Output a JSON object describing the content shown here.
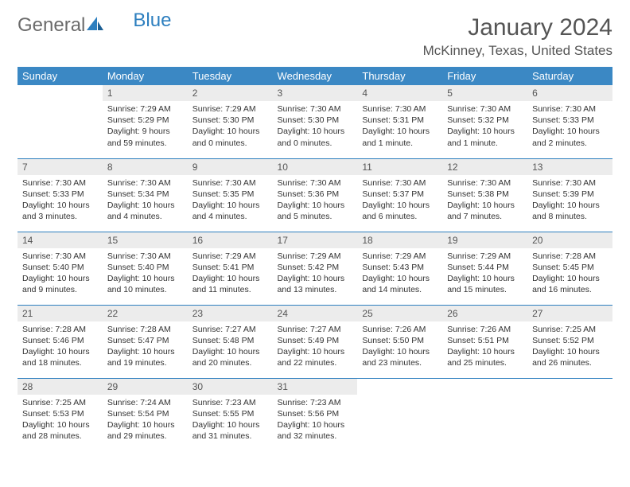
{
  "brand": {
    "part1": "General",
    "part2": "Blue"
  },
  "title": {
    "month": "January 2024",
    "location": "McKinney, Texas, United States"
  },
  "colors": {
    "header_bg": "#3b88c4",
    "header_text": "#ffffff",
    "rule": "#2d7fbf",
    "daynum_bg": "#ececec",
    "body_text": "#333333",
    "brand_grey": "#6b6b6b",
    "brand_blue": "#2d7fbf"
  },
  "weekdays": [
    "Sunday",
    "Monday",
    "Tuesday",
    "Wednesday",
    "Thursday",
    "Friday",
    "Saturday"
  ],
  "layout": {
    "columns": 7,
    "rows": 5,
    "first_weekday_index": 1,
    "days_in_month": 31
  },
  "days": [
    {
      "n": 1,
      "sunrise": "7:29 AM",
      "sunset": "5:29 PM",
      "daylight": "9 hours and 59 minutes."
    },
    {
      "n": 2,
      "sunrise": "7:29 AM",
      "sunset": "5:30 PM",
      "daylight": "10 hours and 0 minutes."
    },
    {
      "n": 3,
      "sunrise": "7:30 AM",
      "sunset": "5:30 PM",
      "daylight": "10 hours and 0 minutes."
    },
    {
      "n": 4,
      "sunrise": "7:30 AM",
      "sunset": "5:31 PM",
      "daylight": "10 hours and 1 minute."
    },
    {
      "n": 5,
      "sunrise": "7:30 AM",
      "sunset": "5:32 PM",
      "daylight": "10 hours and 1 minute."
    },
    {
      "n": 6,
      "sunrise": "7:30 AM",
      "sunset": "5:33 PM",
      "daylight": "10 hours and 2 minutes."
    },
    {
      "n": 7,
      "sunrise": "7:30 AM",
      "sunset": "5:33 PM",
      "daylight": "10 hours and 3 minutes."
    },
    {
      "n": 8,
      "sunrise": "7:30 AM",
      "sunset": "5:34 PM",
      "daylight": "10 hours and 4 minutes."
    },
    {
      "n": 9,
      "sunrise": "7:30 AM",
      "sunset": "5:35 PM",
      "daylight": "10 hours and 4 minutes."
    },
    {
      "n": 10,
      "sunrise": "7:30 AM",
      "sunset": "5:36 PM",
      "daylight": "10 hours and 5 minutes."
    },
    {
      "n": 11,
      "sunrise": "7:30 AM",
      "sunset": "5:37 PM",
      "daylight": "10 hours and 6 minutes."
    },
    {
      "n": 12,
      "sunrise": "7:30 AM",
      "sunset": "5:38 PM",
      "daylight": "10 hours and 7 minutes."
    },
    {
      "n": 13,
      "sunrise": "7:30 AM",
      "sunset": "5:39 PM",
      "daylight": "10 hours and 8 minutes."
    },
    {
      "n": 14,
      "sunrise": "7:30 AM",
      "sunset": "5:40 PM",
      "daylight": "10 hours and 9 minutes."
    },
    {
      "n": 15,
      "sunrise": "7:30 AM",
      "sunset": "5:40 PM",
      "daylight": "10 hours and 10 minutes."
    },
    {
      "n": 16,
      "sunrise": "7:29 AM",
      "sunset": "5:41 PM",
      "daylight": "10 hours and 11 minutes."
    },
    {
      "n": 17,
      "sunrise": "7:29 AM",
      "sunset": "5:42 PM",
      "daylight": "10 hours and 13 minutes."
    },
    {
      "n": 18,
      "sunrise": "7:29 AM",
      "sunset": "5:43 PM",
      "daylight": "10 hours and 14 minutes."
    },
    {
      "n": 19,
      "sunrise": "7:29 AM",
      "sunset": "5:44 PM",
      "daylight": "10 hours and 15 minutes."
    },
    {
      "n": 20,
      "sunrise": "7:28 AM",
      "sunset": "5:45 PM",
      "daylight": "10 hours and 16 minutes."
    },
    {
      "n": 21,
      "sunrise": "7:28 AM",
      "sunset": "5:46 PM",
      "daylight": "10 hours and 18 minutes."
    },
    {
      "n": 22,
      "sunrise": "7:28 AM",
      "sunset": "5:47 PM",
      "daylight": "10 hours and 19 minutes."
    },
    {
      "n": 23,
      "sunrise": "7:27 AM",
      "sunset": "5:48 PM",
      "daylight": "10 hours and 20 minutes."
    },
    {
      "n": 24,
      "sunrise": "7:27 AM",
      "sunset": "5:49 PM",
      "daylight": "10 hours and 22 minutes."
    },
    {
      "n": 25,
      "sunrise": "7:26 AM",
      "sunset": "5:50 PM",
      "daylight": "10 hours and 23 minutes."
    },
    {
      "n": 26,
      "sunrise": "7:26 AM",
      "sunset": "5:51 PM",
      "daylight": "10 hours and 25 minutes."
    },
    {
      "n": 27,
      "sunrise": "7:25 AM",
      "sunset": "5:52 PM",
      "daylight": "10 hours and 26 minutes."
    },
    {
      "n": 28,
      "sunrise": "7:25 AM",
      "sunset": "5:53 PM",
      "daylight": "10 hours and 28 minutes."
    },
    {
      "n": 29,
      "sunrise": "7:24 AM",
      "sunset": "5:54 PM",
      "daylight": "10 hours and 29 minutes."
    },
    {
      "n": 30,
      "sunrise": "7:23 AM",
      "sunset": "5:55 PM",
      "daylight": "10 hours and 31 minutes."
    },
    {
      "n": 31,
      "sunrise": "7:23 AM",
      "sunset": "5:56 PM",
      "daylight": "10 hours and 32 minutes."
    }
  ],
  "labels": {
    "sunrise": "Sunrise:",
    "sunset": "Sunset:",
    "daylight": "Daylight:"
  }
}
